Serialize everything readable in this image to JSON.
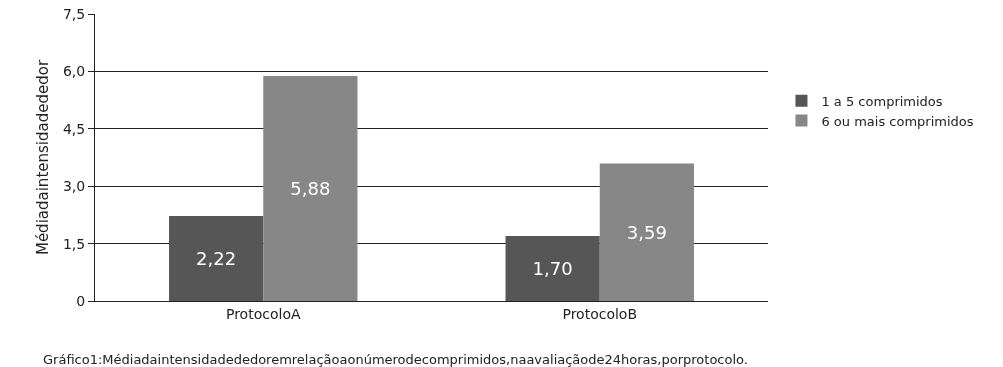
{
  "chart_data": {
    "type": "bar",
    "ylabel": "Médiadaintensidadededor",
    "categories": [
      "ProtocoloA",
      "ProtocoloB"
    ],
    "series": [
      {
        "name": "1 a 5 comprimidos",
        "color": "#565656",
        "values": [
          2.22,
          1.7
        ],
        "value_labels": [
          "2,22",
          "1,70"
        ]
      },
      {
        "name": "6 ou mais comprimidos",
        "color": "#878787",
        "values": [
          5.88,
          3.59
        ],
        "value_labels": [
          "5,88",
          "3,59"
        ]
      }
    ],
    "ylim": [
      0,
      7.5
    ],
    "yticks": [
      0,
      {
        "value": 1.5,
        "label": "1,5"
      },
      {
        "value": 3,
        "label": "3,0"
      },
      {
        "value": 4.5,
        "label": "4,5"
      },
      {
        "value": 6,
        "label": "6,0"
      },
      {
        "value": 7.5,
        "label": "7,5"
      }
    ],
    "grid": "y",
    "legend": "right",
    "annotations": [
      "Gráfico1:Médiadaintensidadededoremrelaçãoaonúmerodecomprimidos,naavaliaçãode24horas,porprotocolo."
    ]
  }
}
